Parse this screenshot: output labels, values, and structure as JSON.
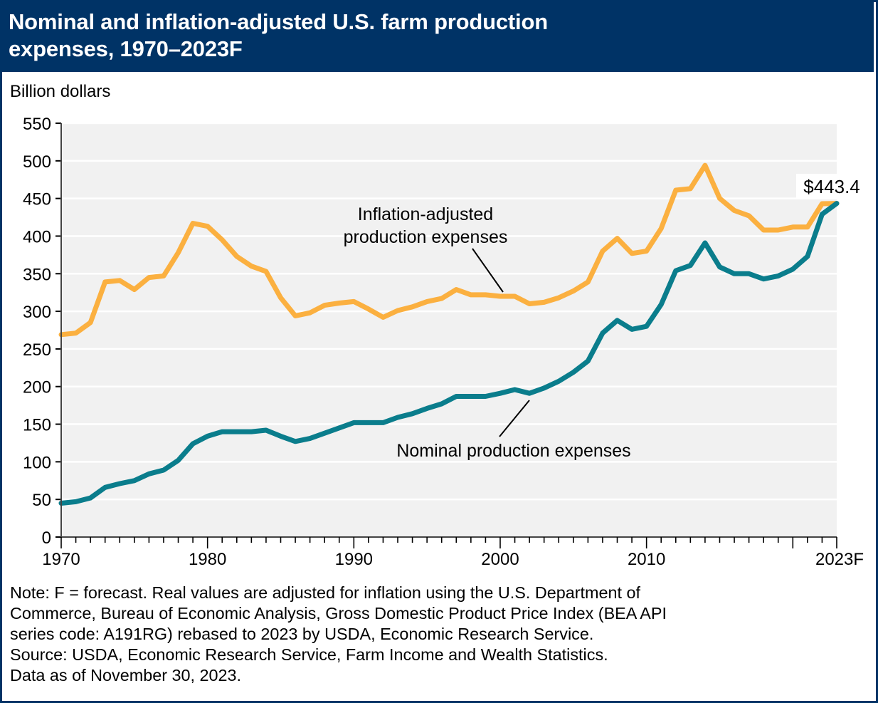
{
  "chart_data": {
    "type": "line",
    "title": "Nominal and inflation-adjusted U.S. farm production expenses, 1970–2023F",
    "title_lines": [
      "Nominal and inflation-adjusted U.S. farm production",
      "expenses, 1970–2023F"
    ],
    "ylabel": "Billion dollars",
    "xlabel": "",
    "ylim": [
      0,
      550
    ],
    "xlim": [
      1970,
      2023
    ],
    "yticks": [
      0,
      50,
      100,
      150,
      200,
      250,
      300,
      350,
      400,
      450,
      500,
      550
    ],
    "xtick_labels": [
      {
        "year": 1970,
        "label": "1970"
      },
      {
        "year": 1980,
        "label": "1980"
      },
      {
        "year": 1990,
        "label": "1990"
      },
      {
        "year": 2000,
        "label": "2000"
      },
      {
        "year": 2010,
        "label": "2010"
      },
      {
        "year": 2023,
        "label": "2023F"
      }
    ],
    "major_tick_years": [
      1970,
      1980,
      1990,
      2000,
      2010,
      2020,
      2023
    ],
    "grid": true,
    "legend": "none (direct annotations)",
    "x": [
      1970,
      1971,
      1972,
      1973,
      1974,
      1975,
      1976,
      1977,
      1978,
      1979,
      1980,
      1981,
      1982,
      1983,
      1984,
      1985,
      1986,
      1987,
      1988,
      1989,
      1990,
      1991,
      1992,
      1993,
      1994,
      1995,
      1996,
      1997,
      1998,
      1999,
      2000,
      2001,
      2002,
      2003,
      2004,
      2005,
      2006,
      2007,
      2008,
      2009,
      2010,
      2011,
      2012,
      2013,
      2014,
      2015,
      2016,
      2017,
      2018,
      2019,
      2020,
      2021,
      2022,
      2023
    ],
    "series": [
      {
        "name": "Inflation-adjusted production expenses",
        "color": "#FBB040",
        "values": [
          269,
          271,
          285,
          339,
          341,
          329,
          345,
          347,
          378,
          417,
          413,
          395,
          373,
          360,
          353,
          318,
          294,
          298,
          308,
          311,
          313,
          303,
          292,
          301,
          306,
          313,
          317,
          329,
          322,
          322,
          320,
          320,
          310,
          312,
          318,
          327,
          339,
          380,
          397,
          377,
          380,
          410,
          461,
          463,
          494,
          450,
          434,
          427,
          408,
          408,
          412,
          412,
          443,
          443.4
        ]
      },
      {
        "name": "Nominal production expenses",
        "color": "#0A7D8C",
        "values": [
          45,
          47,
          52,
          66,
          71,
          75,
          84,
          89,
          102,
          124,
          134,
          140,
          140,
          140,
          142,
          134,
          127,
          131,
          138,
          145,
          152,
          152,
          152,
          159,
          164,
          171,
          177,
          187,
          187,
          187,
          191,
          196,
          191,
          198,
          207,
          219,
          234,
          271,
          288,
          276,
          280,
          309,
          354,
          361,
          391,
          359,
          350,
          350,
          343,
          347,
          356,
          373,
          429,
          443.4
        ]
      }
    ],
    "annotations": [
      {
        "text_lines": [
          "Inflation-adjusted",
          "production expenses"
        ],
        "series": "Inflation-adjusted production expenses",
        "points_to_year": 2001
      },
      {
        "text_lines": [
          "Nominal production expenses"
        ],
        "series": "Nominal production expenses",
        "points_to_year": 2002
      },
      {
        "text": "$443.4",
        "year": 2023,
        "value": 443.4
      }
    ]
  },
  "notes": [
    "Note: F = forecast. Real values are adjusted for inflation using the U.S. Department of",
    "Commerce, Bureau of Economic Analysis, Gross Domestic Product Price Index (BEA API",
    "series code: A191RG) rebased to 2023 by USDA, Economic Research Service.",
    "Source: USDA, Economic Research Service, Farm Income and Wealth Statistics.",
    "Data as of November 30, 2023."
  ],
  "colors": {
    "header_bg": "#003366",
    "plot_bg": "#F1F1F1",
    "inflation_adjusted": "#FBB040",
    "nominal": "#0A7D8C"
  }
}
